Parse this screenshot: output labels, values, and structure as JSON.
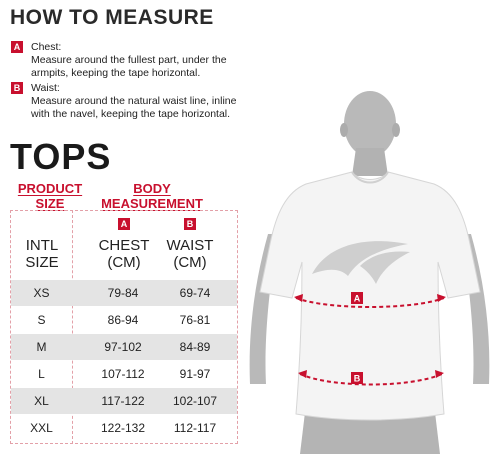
{
  "header": {
    "title": "HOW TO MEASURE"
  },
  "legend": [
    {
      "badge": "A",
      "label": "Chest:",
      "lines": [
        "Measure around the fullest part, under the",
        "armpits, keeping the tape horizontal."
      ]
    },
    {
      "badge": "B",
      "label": "Waist:",
      "lines": [
        "Measure around the natural waist line, inline",
        "with the navel, keeping the tape horizontal."
      ]
    }
  ],
  "section_title": "TOPS",
  "table": {
    "product_size_header": [
      "PRODUCT",
      "SIZE"
    ],
    "body_measurement_header": [
      "BODY",
      "MEASUREMENT"
    ],
    "columns": [
      {
        "badge": "",
        "line1": "INTL",
        "line2": "SIZE"
      },
      {
        "badge": "A",
        "line1": "CHEST",
        "line2": "(CM)"
      },
      {
        "badge": "B",
        "line1": "WAIST",
        "line2": "(CM)"
      }
    ],
    "rows": [
      {
        "size": "XS",
        "chest": "79-84",
        "waist": "69-74"
      },
      {
        "size": "S",
        "chest": "86-94",
        "waist": "76-81"
      },
      {
        "size": "M",
        "chest": "97-102",
        "waist": "84-89"
      },
      {
        "size": "L",
        "chest": "107-112",
        "waist": "91-97"
      },
      {
        "size": "XL",
        "chest": "117-122",
        "waist": "102-107"
      },
      {
        "size": "XXL",
        "chest": "122-132",
        "waist": "112-117"
      }
    ]
  },
  "figure": {
    "chest_marker": "A",
    "waist_marker": "B"
  },
  "colors": {
    "accent": "#c8102e",
    "row_shade": "#e4e4e4",
    "shirt": "#f4f4f4",
    "body": "#b9b9b9"
  }
}
